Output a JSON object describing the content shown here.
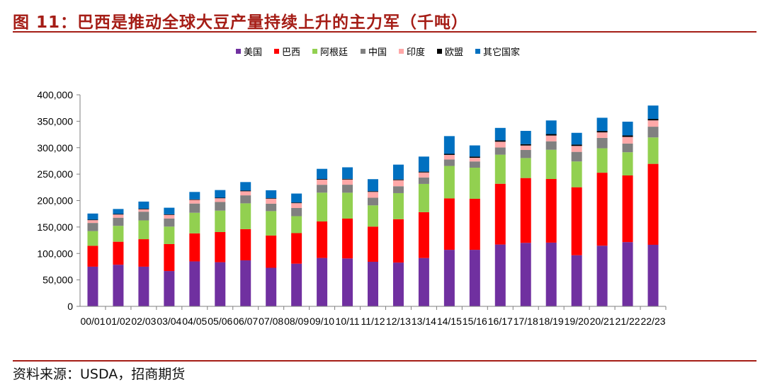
{
  "title": "图 11：巴西是推动全球大豆产量持续上升的主力军（千吨）",
  "source": "资料来源：USDA，招商期货",
  "chart_data": {
    "type": "bar",
    "stacked": true,
    "categories": [
      "00/01",
      "01/02",
      "02/03",
      "03/04",
      "04/05",
      "05/06",
      "06/07",
      "07/08",
      "08/09",
      "09/10",
      "10/11",
      "11/12",
      "12/13",
      "13/14",
      "14/15",
      "15/16",
      "16/17",
      "17/18",
      "18/19",
      "19/20",
      "20/21",
      "21/22",
      "22/23"
    ],
    "ylim": [
      0,
      400000
    ],
    "yticks": [
      0,
      50000,
      100000,
      150000,
      200000,
      250000,
      300000,
      350000,
      400000
    ],
    "ytick_labels": [
      "0",
      "50,000",
      "100,000",
      "150,000",
      "200,000",
      "250,000",
      "300,000",
      "350,000",
      "400,000"
    ],
    "legend_position": "top",
    "grid": false,
    "series": [
      {
        "name": "美国",
        "color": "#7030a0",
        "values": [
          75000,
          78700,
          75000,
          66800,
          85000,
          83500,
          87000,
          72900,
          80700,
          91500,
          90600,
          84300,
          82800,
          91400,
          106900,
          106900,
          116900,
          120100,
          120500,
          96700,
          114700,
          121500,
          116400
        ]
      },
      {
        "name": "巴西",
        "color": "#ff0000",
        "values": [
          39500,
          43500,
          52000,
          51000,
          53000,
          57000,
          59000,
          61000,
          57800,
          69000,
          75300,
          66500,
          82000,
          86700,
          97200,
          96500,
          114900,
          122500,
          120300,
          128500,
          138000,
          126000,
          153000
        ]
      },
      {
        "name": "阿根廷",
        "color": "#92d050",
        "values": [
          27800,
          30000,
          35500,
          33000,
          39000,
          40500,
          48800,
          46200,
          32000,
          54500,
          49000,
          40100,
          49300,
          53400,
          61400,
          58800,
          55000,
          37800,
          55300,
          48800,
          46200,
          43900,
          50000
        ]
      },
      {
        "name": "中国",
        "color": "#808080",
        "values": [
          15400,
          15400,
          16500,
          15400,
          17400,
          16400,
          15100,
          14000,
          15500,
          14900,
          15100,
          14500,
          13000,
          12200,
          12200,
          11800,
          13600,
          15300,
          16000,
          18100,
          19600,
          16400,
          20300
        ]
      },
      {
        "name": "印度",
        "color": "#ffa8a8",
        "values": [
          5300,
          6000,
          4600,
          6800,
          6900,
          7000,
          7700,
          9500,
          9100,
          9700,
          9800,
          11000,
          11500,
          9500,
          8700,
          6900,
          10900,
          8400,
          10900,
          11200,
          10500,
          12600,
          12000
        ]
      },
      {
        "name": "欧盟",
        "color": "#000000",
        "values": [
          1000,
          1000,
          1000,
          1000,
          1000,
          1000,
          1200,
          1000,
          1200,
          1200,
          1300,
          1300,
          1300,
          1500,
          1900,
          2300,
          2500,
          2600,
          2700,
          2600,
          2600,
          2800,
          2700
        ]
      },
      {
        "name": "其它国家",
        "color": "#0070c0",
        "values": [
          11500,
          9500,
          13500,
          12500,
          14000,
          14500,
          16200,
          14900,
          17000,
          19200,
          21800,
          22800,
          28100,
          28500,
          33600,
          21100,
          23600,
          25100,
          25800,
          22200,
          25000,
          26000,
          25300
        ]
      }
    ]
  }
}
